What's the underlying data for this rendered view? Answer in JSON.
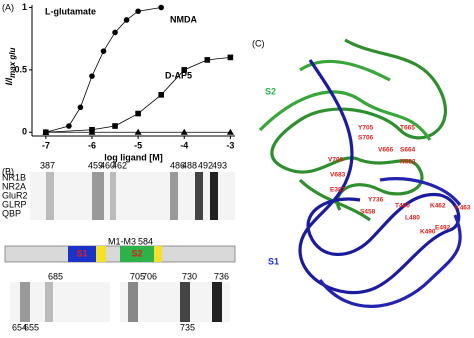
{
  "chart_data": {
    "type": "scatter",
    "panel_label": "(A)",
    "x_label": "log ligand [M]",
    "y_label": "I/I",
    "y_label_sub": "max glu",
    "xlim": [
      -7.3,
      -2.9
    ],
    "xticks": [
      -7,
      -6,
      -5,
      -4,
      -3
    ],
    "ylim": [
      -0.03,
      1.02
    ],
    "yticks": [
      0,
      0.5,
      1
    ],
    "series": [
      {
        "name": "L-glutamate",
        "color": "#000000",
        "marker": "circle",
        "x": [
          -7,
          -6.5,
          -6.25,
          -6,
          -5.75,
          -5.5,
          -5.25,
          -5,
          -4.5
        ],
        "values": [
          0,
          0.05,
          0.2,
          0.45,
          0.65,
          0.8,
          0.9,
          0.97,
          1.0
        ]
      },
      {
        "name": "NMDA",
        "color": "#000000",
        "marker": "square",
        "x": [
          -7,
          -6,
          -5.5,
          -5,
          -4.5,
          -4,
          -3.5,
          -3
        ],
        "values": [
          0,
          0.02,
          0.05,
          0.15,
          0.3,
          0.5,
          0.58,
          0.6
        ]
      },
      {
        "name": "D-AP5",
        "color": "#000000",
        "marker": "triangle",
        "x": [
          -7,
          -6,
          -5,
          -4,
          -3
        ],
        "values": [
          0,
          0,
          0,
          0,
          0
        ]
      }
    ]
  },
  "panel_b": {
    "label": "(B)",
    "names": [
      "NR1B",
      "NR2A",
      "GluR2",
      "GLRP",
      "QBP"
    ],
    "top_numbers": [
      "387",
      "459",
      "460",
      "462",
      "486",
      "488",
      "492",
      "493"
    ],
    "domains": [
      "S1",
      "S2"
    ],
    "bar_labels": [
      "M1-M3",
      "584"
    ],
    "bottom_numbers": [
      "685",
      "705",
      "706",
      "730",
      "736",
      "654",
      "655",
      "735"
    ]
  },
  "panel_c": {
    "label": "(C)",
    "domains": [
      "S2",
      "S1"
    ],
    "residues": [
      "Y705",
      "T665",
      "S706",
      "V708",
      "V666",
      "S664",
      "N662",
      "V683",
      "E387",
      "Y736",
      "S458",
      "T460",
      "K462",
      "K463",
      "L480",
      "K490",
      "E492"
    ]
  }
}
